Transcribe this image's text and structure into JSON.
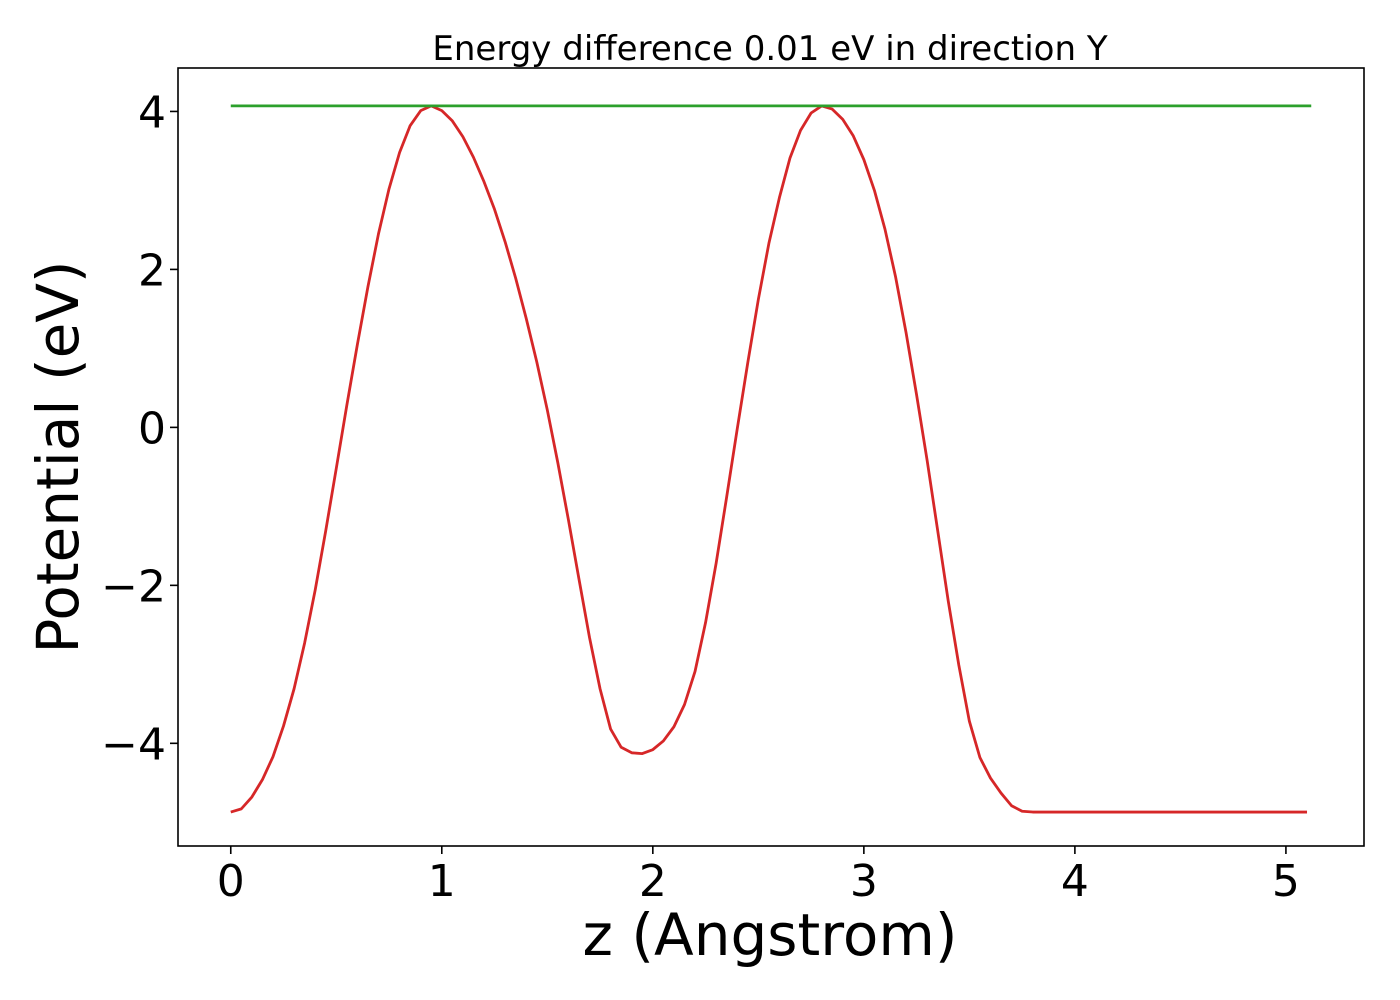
{
  "chart_data": {
    "type": "line",
    "title": "Energy difference 0.01 eV in direction Y",
    "xlabel": "z (Angstrom)",
    "ylabel": "Potential (eV)",
    "xlim": [
      -0.25,
      5.37
    ],
    "ylim": [
      -5.3,
      4.55
    ],
    "xticks": [
      0,
      1,
      2,
      3,
      4,
      5
    ],
    "xtick_labels": [
      "0",
      "1",
      "2",
      "3",
      "4",
      "5"
    ],
    "yticks": [
      -4,
      -2,
      0,
      2,
      4
    ],
    "ytick_labels": [
      "−4",
      "−2",
      "0",
      "2",
      "4"
    ],
    "grid": false,
    "series": [
      {
        "color": "#d62728",
        "x": [
          0.0,
          0.05,
          0.1,
          0.15,
          0.2,
          0.25,
          0.3,
          0.35,
          0.4,
          0.45,
          0.5,
          0.55,
          0.6,
          0.65,
          0.7,
          0.75,
          0.8,
          0.85,
          0.9,
          0.95,
          1.0,
          1.05,
          1.1,
          1.15,
          1.2,
          1.25,
          1.3,
          1.35,
          1.4,
          1.45,
          1.5,
          1.55,
          1.6,
          1.65,
          1.7,
          1.75,
          1.8,
          1.85,
          1.9,
          1.95,
          2.0,
          2.05,
          2.1,
          2.15,
          2.2,
          2.25,
          2.3,
          2.35,
          2.4,
          2.45,
          2.5,
          2.55,
          2.6,
          2.65,
          2.7,
          2.75,
          2.8,
          2.85,
          2.9,
          2.95,
          3.0,
          3.05,
          3.1,
          3.15,
          3.2,
          3.25,
          3.3,
          3.35,
          3.4,
          3.45,
          3.5,
          3.55,
          3.6,
          3.65,
          3.7,
          3.75,
          3.8,
          3.85,
          3.9,
          3.95,
          4.0,
          4.05,
          4.1,
          4.15,
          4.2,
          4.25,
          4.3,
          4.35,
          4.4,
          4.45,
          4.5,
          4.55,
          4.6,
          4.65,
          4.7,
          4.75,
          4.8,
          4.85,
          4.9,
          4.95,
          5.0,
          5.05,
          5.1
        ],
        "y": [
          -4.87,
          -4.83,
          -4.68,
          -4.46,
          -4.17,
          -3.78,
          -3.31,
          -2.73,
          -2.06,
          -1.31,
          -0.52,
          0.28,
          1.05,
          1.78,
          2.45,
          3.02,
          3.48,
          3.82,
          4.01,
          4.07,
          4.01,
          3.88,
          3.68,
          3.42,
          3.11,
          2.76,
          2.35,
          1.89,
          1.38,
          0.83,
          0.22,
          -0.45,
          -1.17,
          -1.92,
          -2.66,
          -3.31,
          -3.82,
          -4.05,
          -4.12,
          -4.13,
          -4.08,
          -3.97,
          -3.79,
          -3.51,
          -3.09,
          -2.47,
          -1.72,
          -0.88,
          -0.02,
          0.82,
          1.62,
          2.33,
          2.91,
          3.41,
          3.76,
          3.98,
          4.07,
          4.03,
          3.9,
          3.69,
          3.39,
          3.0,
          2.51,
          1.91,
          1.2,
          0.41,
          -0.42,
          -1.31,
          -2.2,
          -3.01,
          -3.72,
          -4.18,
          -4.44,
          -4.63,
          -4.79,
          -4.86,
          -4.87,
          -4.87,
          -4.87,
          -4.87,
          -4.87,
          -4.87,
          -4.87,
          -4.87,
          -4.87,
          -4.87,
          -4.87,
          -4.87,
          -4.87,
          -4.87,
          -4.87,
          -4.87,
          -4.87,
          -4.87,
          -4.87,
          -4.87,
          -4.87,
          -4.87,
          -4.87,
          -4.87,
          -4.87,
          -4.87,
          -4.87
        ]
      },
      {
        "color": "#2ca02c",
        "x": [
          0.0,
          5.12
        ],
        "y": [
          4.07,
          4.07
        ]
      }
    ]
  }
}
